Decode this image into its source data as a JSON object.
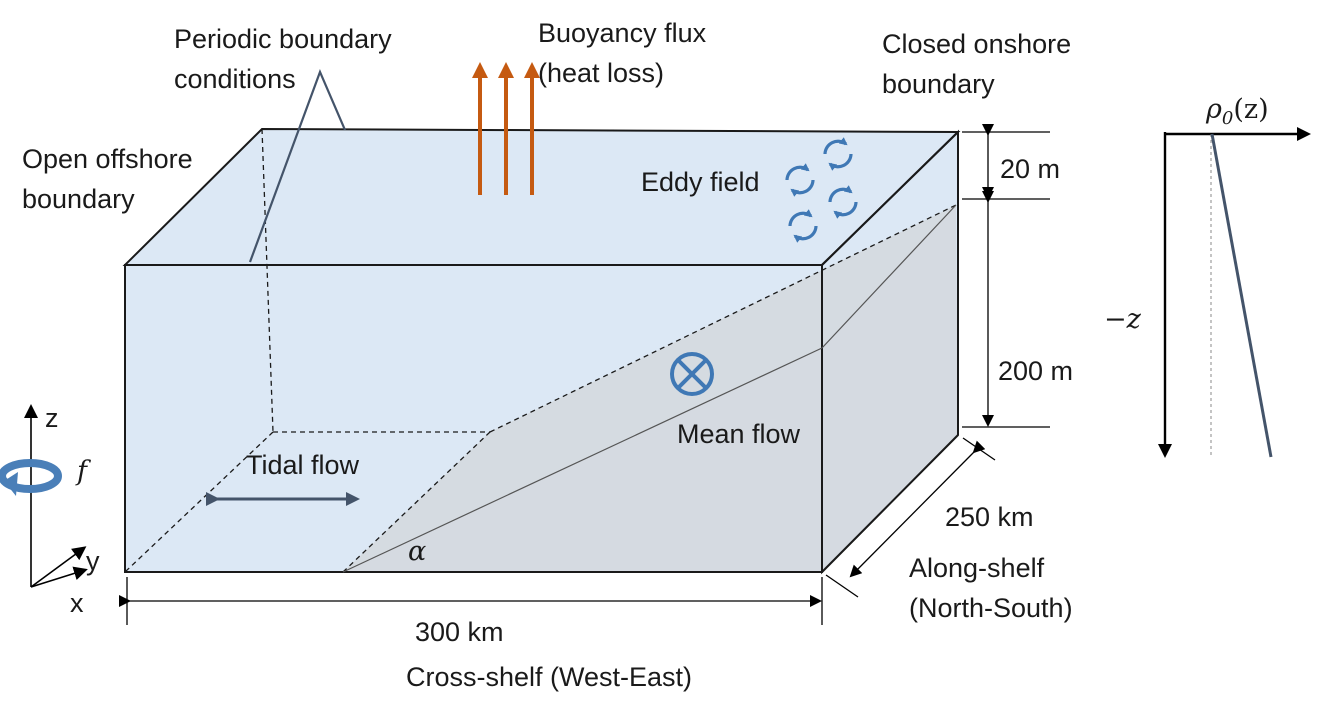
{
  "labels": {
    "periodic": [
      "Periodic boundary",
      "conditions"
    ],
    "buoyancy": [
      "Buoyancy flux",
      "(heat loss)"
    ],
    "closed": [
      "Closed onshore",
      "boundary"
    ],
    "open": [
      "Open offshore",
      "boundary"
    ],
    "eddy": "Eddy field",
    "tidal": "Tidal flow",
    "mean": "Mean flow",
    "alpha": "α",
    "along": [
      "Along-shelf",
      "(North-South)"
    ],
    "cross": "Cross-shelf (West-East)"
  },
  "dimensions": {
    "top_layer": "20 m",
    "depth": "200 m",
    "width": "250 km",
    "length": "300 km"
  },
  "axes": {
    "z": "z",
    "y": "y",
    "x": "x",
    "f": "f"
  },
  "profile": {
    "rho": "ρ",
    "rho_sub": "0",
    "rho_arg": "(z)",
    "neg_z": "−z"
  },
  "colors": {
    "water": "#dce8f5",
    "shelf": "#d4d9df",
    "arrow_orange": "#c55a11",
    "eddy_blue": "#3f78b5",
    "line_gray": "#44546a"
  }
}
